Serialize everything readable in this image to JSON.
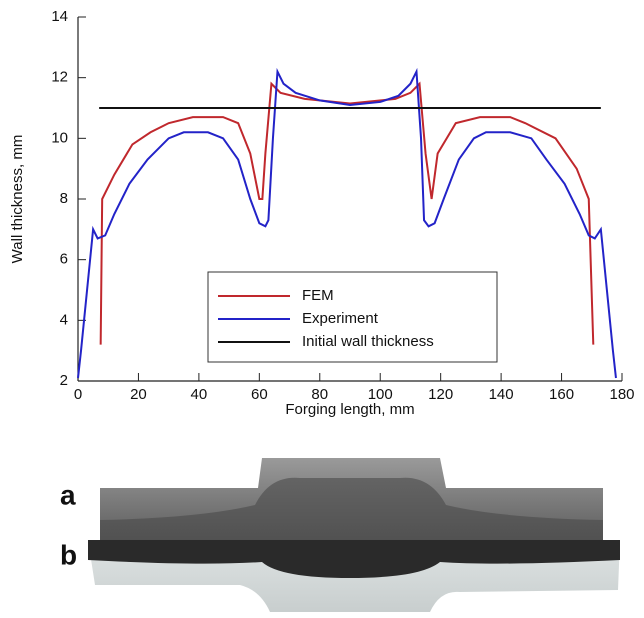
{
  "chart_data": {
    "type": "line",
    "xlabel": "Forging length, mm",
    "ylabel": "Wall thickness, mm",
    "xlim": [
      0,
      180
    ],
    "ylim": [
      2,
      14
    ],
    "xticks": [
      0,
      20,
      40,
      60,
      80,
      100,
      120,
      140,
      160,
      180
    ],
    "yticks": [
      2,
      4,
      6,
      8,
      10,
      12,
      14
    ],
    "legend": "center",
    "series": [
      {
        "name": "FEM",
        "color": "#c0282d",
        "x": [
          7.5,
          8,
          12,
          18,
          24,
          30,
          38,
          48,
          53,
          57,
          60,
          61,
          62,
          64,
          67,
          75,
          90,
          105,
          110,
          113,
          115,
          117,
          119,
          125,
          133,
          143,
          148,
          158,
          165,
          169,
          170.5
        ],
        "values": [
          3.2,
          8,
          8.8,
          9.8,
          10.2,
          10.5,
          10.7,
          10.7,
          10.5,
          9.5,
          8,
          8,
          9.5,
          11.8,
          11.5,
          11.3,
          11.15,
          11.3,
          11.5,
          11.8,
          9.5,
          8,
          9.5,
          10.5,
          10.7,
          10.7,
          10.5,
          10,
          9,
          8,
          3.2
        ]
      },
      {
        "name": "Experiment",
        "color": "#2323c8",
        "x": [
          0,
          1,
          3,
          5,
          6.5,
          9,
          12,
          17,
          23,
          30,
          35,
          43,
          48,
          53,
          57,
          60,
          62,
          63,
          64.5,
          66,
          68,
          72,
          80,
          90,
          100,
          106,
          110,
          112,
          113.5,
          114.5,
          116,
          118,
          121,
          126,
          131,
          135,
          143,
          150,
          155,
          161,
          166,
          169,
          171,
          173,
          175,
          177,
          178
        ],
        "values": [
          2.1,
          3,
          5,
          7,
          6.7,
          6.8,
          7.5,
          8.5,
          9.3,
          10,
          10.2,
          10.2,
          10,
          9.3,
          8,
          7.2,
          7.1,
          7.3,
          10,
          12.2,
          11.8,
          11.5,
          11.25,
          11.1,
          11.2,
          11.4,
          11.8,
          12.2,
          10,
          7.3,
          7.1,
          7.2,
          8,
          9.3,
          10,
          10.2,
          10.2,
          10,
          9.3,
          8.5,
          7.5,
          6.8,
          6.7,
          7,
          5,
          3,
          2.1
        ]
      },
      {
        "name": "Initial wall thickness",
        "color": "#111111",
        "x": [
          7,
          173
        ],
        "values": [
          11,
          11
        ]
      }
    ]
  },
  "panels": [
    {
      "label": "a"
    },
    {
      "label": "b"
    }
  ]
}
